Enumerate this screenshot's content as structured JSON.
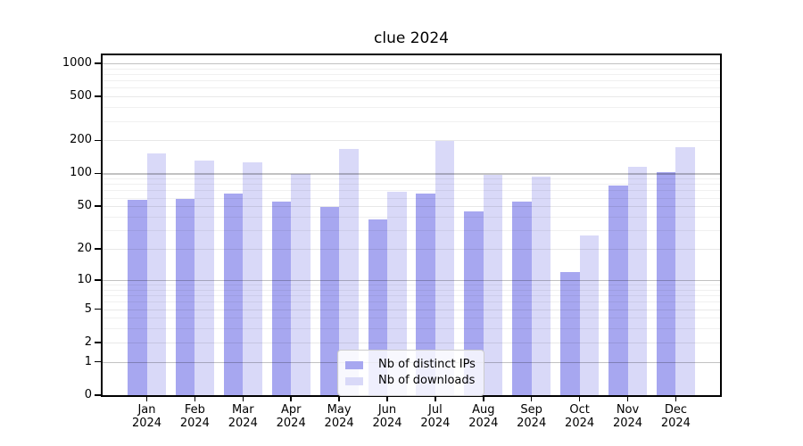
{
  "chart": {
    "title": "clue 2024"
  },
  "chart_data": {
    "type": "bar",
    "title": "clue 2024",
    "categories": [
      "Jan 2024",
      "Feb 2024",
      "Mar 2024",
      "Apr 2024",
      "May 2024",
      "Jun 2024",
      "Jul 2024",
      "Aug 2024",
      "Sep 2024",
      "Oct 2024",
      "Nov 2024",
      "Dec 2024"
    ],
    "months": [
      "Jan",
      "Feb",
      "Mar",
      "Apr",
      "May",
      "Jun",
      "Jul",
      "Aug",
      "Sep",
      "Oct",
      "Nov",
      "Dec"
    ],
    "year": "2024",
    "series": [
      {
        "name": "Nb of distinct IPs",
        "color": "#a7a7f0",
        "values": [
          57,
          59,
          66,
          55,
          49,
          38,
          65,
          45,
          55,
          12,
          77,
          102
        ]
      },
      {
        "name": "Nb of downloads",
        "color": "#d9d9f8",
        "values": [
          152,
          130,
          126,
          99,
          166,
          68,
          198,
          98,
          94,
          27,
          115,
          172
        ]
      }
    ],
    "y_scale": "log10(1+v)",
    "y_ticks": [
      0,
      1,
      2,
      5,
      10,
      20,
      50,
      100,
      200,
      500,
      1000
    ],
    "y_decade_ticks": [
      1,
      10,
      100,
      1000
    ],
    "ylim": [
      0,
      1270
    ],
    "grid": true,
    "grid_over_bars": true,
    "legend_position": "lower center",
    "axis_color": "#000000"
  }
}
